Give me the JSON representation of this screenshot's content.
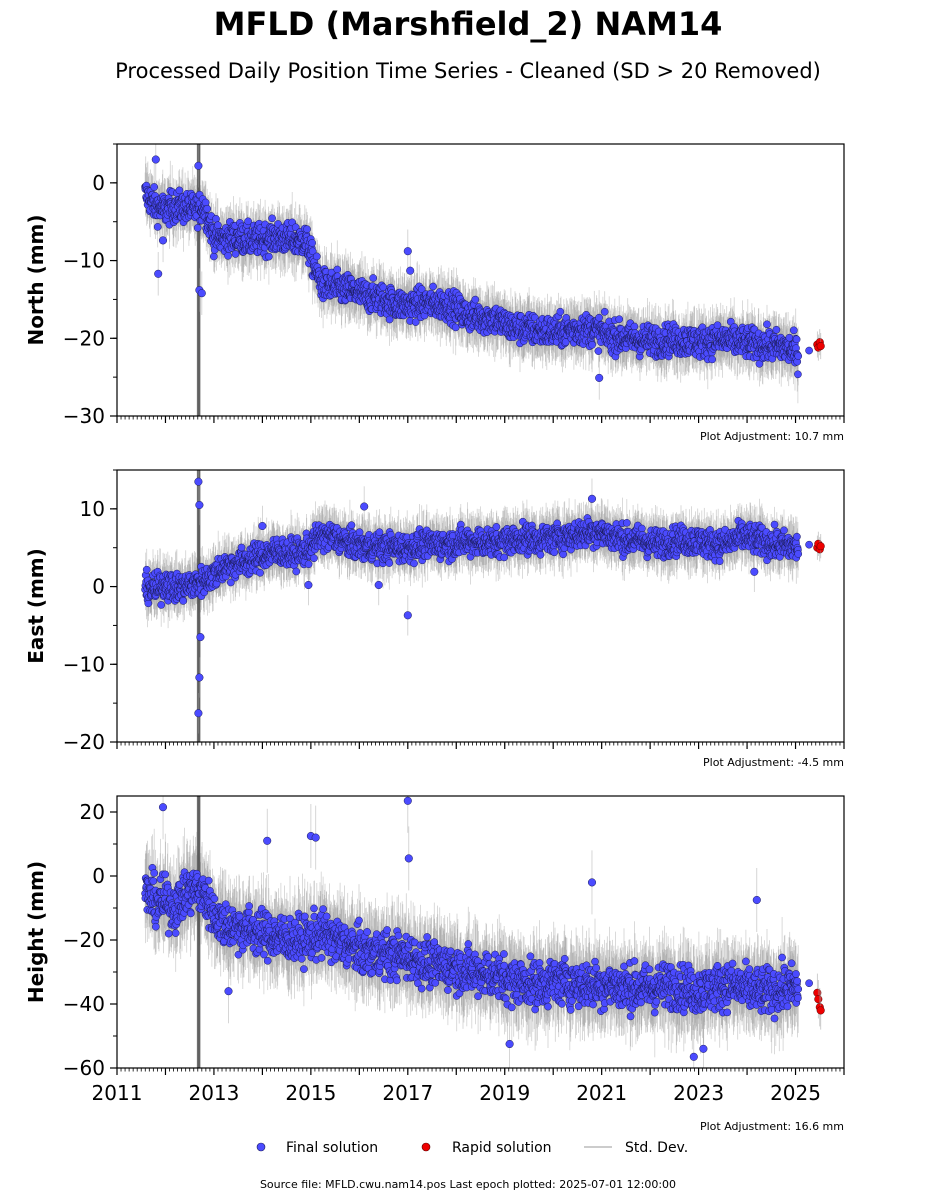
{
  "figure": {
    "title": "MFLD (Marshfield_2) NAM14",
    "subtitle": "Processed Daily Position Time Series - Cleaned (SD > 20 Removed)",
    "footer": "Source file: MFLD.cwu.nam14.pos  Last epoch plotted: 2025-07-01 12:00:00"
  },
  "legend": {
    "placement": "bottom-center",
    "items": [
      {
        "label": "Final solution",
        "color": "#4b4bff",
        "kind": "dot"
      },
      {
        "label": "Rapid solution",
        "color": "#ee0000",
        "kind": "dot"
      },
      {
        "label": "Std. Dev.",
        "color": "#bbbbbb",
        "kind": "line"
      }
    ]
  },
  "colors": {
    "final": "#4b4bff",
    "final_edge": "#1a1a55",
    "rapid": "#ee0000",
    "std_dev": "#9a9a9a"
  },
  "chart_data": [
    {
      "type": "scatter",
      "ylabel": "North (mm)",
      "ylim": [
        -30,
        5
      ],
      "yticks": [
        0,
        -10,
        -20,
        -30
      ],
      "ytick_labels": [
        "0",
        "−10",
        "−20",
        "−30"
      ],
      "xlim": [
        2011,
        2026
      ],
      "show_xtick_labels": false,
      "adjustment": "Plot Adjustment: 10.7 mm",
      "final_series": {
        "name": "Final solution",
        "x": [
          2011.6,
          2011.8,
          2012.0,
          2012.2,
          2012.4,
          2012.6,
          2012.8,
          2013.0,
          2013.2,
          2013.5,
          2013.8,
          2014.0,
          2014.3,
          2014.6,
          2014.9,
          2015.2,
          2015.5,
          2015.8,
          2016.1,
          2016.4,
          2016.7,
          2017.0,
          2017.3,
          2017.6,
          2017.9,
          2018.2,
          2018.5,
          2018.8,
          2019.1,
          2019.4,
          2019.7,
          2020.0,
          2020.3,
          2020.6,
          2020.9,
          2021.2,
          2021.5,
          2021.8,
          2022.1,
          2022.4,
          2022.7,
          2023.0,
          2023.3,
          2023.6,
          2023.9,
          2024.2,
          2024.5,
          2024.8,
          2025.05
        ],
        "y": [
          -1.5,
          -3.0,
          -3.5,
          -3.0,
          -3.2,
          -3.5,
          -3.0,
          -7.0,
          -7.2,
          -7.0,
          -7.5,
          -7.2,
          -7.0,
          -7.3,
          -7.5,
          -13.0,
          -13.5,
          -13.8,
          -14.5,
          -14.8,
          -15.5,
          -15.8,
          -15.5,
          -15.5,
          -15.8,
          -17.0,
          -17.3,
          -17.5,
          -18.5,
          -18.8,
          -19.0,
          -19.2,
          -19.0,
          -18.8,
          -19.0,
          -19.8,
          -20.0,
          -20.2,
          -20.3,
          -20.2,
          -20.3,
          -20.5,
          -20.3,
          -20.2,
          -20.5,
          -20.8,
          -21.0,
          -21.2,
          -22.0
        ],
        "outliers": [
          {
            "x": 2011.8,
            "y": 3.0
          },
          {
            "x": 2011.85,
            "y": -11.7
          },
          {
            "x": 2011.95,
            "y": -7.4
          },
          {
            "x": 2012.68,
            "y": 2.2
          },
          {
            "x": 2012.7,
            "y": -13.8
          },
          {
            "x": 2012.75,
            "y": -14.2
          },
          {
            "x": 2017.0,
            "y": -8.8
          },
          {
            "x": 2017.05,
            "y": -11.3
          },
          {
            "x": 2020.95,
            "y": -25.1
          }
        ]
      },
      "rapid_series": {
        "name": "Rapid solution",
        "x": [
          2025.45,
          2025.47,
          2025.5,
          2025.52
        ],
        "y": [
          -20.8,
          -21.2,
          -20.5,
          -21.0
        ]
      }
    },
    {
      "type": "scatter",
      "ylabel": "East (mm)",
      "ylim": [
        -20,
        15
      ],
      "yticks": [
        10,
        0,
        -10,
        -20
      ],
      "ytick_labels": [
        "10",
        "0",
        "−10",
        "−20"
      ],
      "xlim": [
        2011,
        2026
      ],
      "show_xtick_labels": false,
      "adjustment": "Plot Adjustment: -4.5 mm",
      "final_series": {
        "name": "Final solution",
        "x": [
          2011.6,
          2011.8,
          2012.0,
          2012.2,
          2012.4,
          2012.6,
          2012.8,
          2013.0,
          2013.2,
          2013.5,
          2013.8,
          2014.0,
          2014.3,
          2014.6,
          2014.9,
          2015.2,
          2015.5,
          2015.8,
          2016.1,
          2016.4,
          2016.7,
          2017.0,
          2017.3,
          2017.6,
          2017.9,
          2018.2,
          2018.5,
          2018.8,
          2019.1,
          2019.4,
          2019.7,
          2020.0,
          2020.3,
          2020.6,
          2020.9,
          2021.2,
          2021.5,
          2021.8,
          2022.1,
          2022.4,
          2022.7,
          2023.0,
          2023.3,
          2023.6,
          2023.9,
          2024.2,
          2024.5,
          2024.8,
          2025.05
        ],
        "y": [
          0.0,
          -0.5,
          0.5,
          -0.3,
          0.0,
          0.3,
          0.8,
          1.5,
          2.5,
          3.0,
          3.5,
          4.0,
          4.5,
          4.2,
          4.5,
          6.5,
          6.3,
          5.5,
          5.2,
          5.0,
          5.0,
          5.0,
          5.3,
          5.5,
          5.5,
          5.8,
          5.8,
          5.6,
          6.0,
          6.2,
          6.0,
          6.2,
          6.5,
          6.8,
          7.2,
          6.5,
          6.0,
          6.0,
          5.5,
          5.8,
          6.0,
          5.8,
          5.5,
          5.5,
          6.5,
          6.0,
          5.5,
          5.2,
          5.0
        ],
        "outliers": [
          {
            "x": 2012.68,
            "y": 13.5
          },
          {
            "x": 2012.7,
            "y": 10.5
          },
          {
            "x": 2012.72,
            "y": -6.5
          },
          {
            "x": 2012.7,
            "y": -11.7
          },
          {
            "x": 2012.68,
            "y": -16.3
          },
          {
            "x": 2014.0,
            "y": 7.8
          },
          {
            "x": 2014.95,
            "y": 0.2
          },
          {
            "x": 2016.1,
            "y": 10.3
          },
          {
            "x": 2016.4,
            "y": 0.2
          },
          {
            "x": 2017.0,
            "y": -3.7
          },
          {
            "x": 2020.8,
            "y": 11.3
          },
          {
            "x": 2024.15,
            "y": 1.9
          }
        ]
      },
      "rapid_series": {
        "name": "Rapid solution",
        "x": [
          2025.45,
          2025.47,
          2025.5,
          2025.52
        ],
        "y": [
          5.0,
          5.5,
          4.8,
          5.2
        ]
      }
    },
    {
      "type": "scatter",
      "ylabel": "Height (mm)",
      "ylim": [
        -60,
        25
      ],
      "yticks": [
        20,
        0,
        -20,
        -40,
        -60
      ],
      "ytick_labels": [
        "20",
        "0",
        "−20",
        "−40",
        "−60"
      ],
      "xlim": [
        2011,
        2026
      ],
      "xticks": [
        2011,
        2013,
        2015,
        2017,
        2019,
        2021,
        2023,
        2025
      ],
      "xtick_labels": [
        "2011",
        "2013",
        "2015",
        "2017",
        "2019",
        "2021",
        "2023",
        "2025"
      ],
      "show_xtick_labels": true,
      "adjustment": "Plot Adjustment: 16.6 mm",
      "final_series": {
        "name": "Final solution",
        "x": [
          2011.6,
          2011.8,
          2012.0,
          2012.2,
          2012.4,
          2012.6,
          2012.8,
          2013.0,
          2013.2,
          2013.5,
          2013.8,
          2014.0,
          2014.3,
          2014.6,
          2014.9,
          2015.2,
          2015.5,
          2015.8,
          2016.1,
          2016.4,
          2016.7,
          2017.0,
          2017.3,
          2017.6,
          2017.9,
          2018.2,
          2018.5,
          2018.8,
          2019.1,
          2019.4,
          2019.7,
          2020.0,
          2020.3,
          2020.6,
          2020.9,
          2021.2,
          2021.5,
          2021.8,
          2022.1,
          2022.4,
          2022.7,
          2023.0,
          2023.3,
          2023.6,
          2023.9,
          2024.2,
          2024.5,
          2024.8,
          2025.05
        ],
        "y": [
          -5,
          -8,
          -8,
          -10,
          -6,
          -4,
          -6,
          -12,
          -15,
          -16,
          -17,
          -18,
          -19,
          -20,
          -20,
          -18,
          -20,
          -22,
          -24,
          -24,
          -25,
          -25,
          -27,
          -28,
          -28,
          -30,
          -30,
          -31,
          -33,
          -33,
          -34,
          -33,
          -33,
          -34,
          -34,
          -34,
          -35,
          -35,
          -35,
          -34,
          -35,
          -36,
          -35,
          -34,
          -35,
          -36,
          -36,
          -35,
          -35
        ],
        "outliers": [
          {
            "x": 2011.95,
            "y": 21.5
          },
          {
            "x": 2013.3,
            "y": -36.0
          },
          {
            "x": 2014.1,
            "y": 11.0
          },
          {
            "x": 2015.0,
            "y": 12.5
          },
          {
            "x": 2015.1,
            "y": 12.0
          },
          {
            "x": 2017.0,
            "y": 23.5
          },
          {
            "x": 2017.02,
            "y": 5.5
          },
          {
            "x": 2019.1,
            "y": -52.5
          },
          {
            "x": 2020.8,
            "y": -2.0
          },
          {
            "x": 2022.9,
            "y": -56.5
          },
          {
            "x": 2023.1,
            "y": -54.0
          },
          {
            "x": 2024.2,
            "y": -7.5
          }
        ]
      },
      "rapid_series": {
        "name": "Rapid solution",
        "x": [
          2025.45,
          2025.47,
          2025.5,
          2025.52
        ],
        "y": [
          -36.5,
          -38.5,
          -41.0,
          -42.0
        ]
      }
    }
  ]
}
